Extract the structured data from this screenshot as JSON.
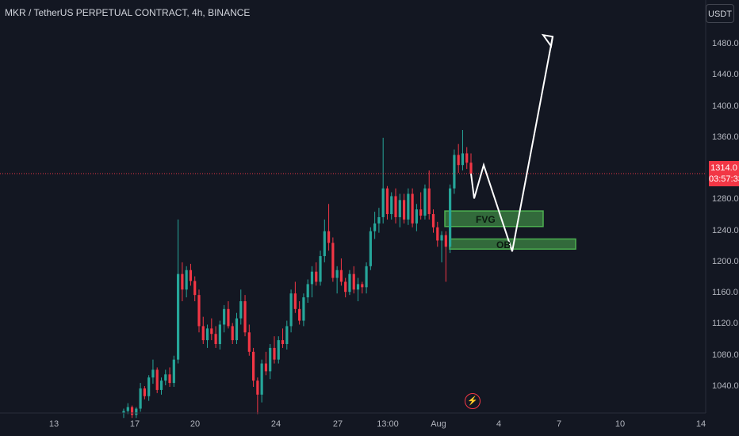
{
  "header": {
    "symbol_title": "MKR / TetherUS PERPETUAL CONTRACT, 4h, BINANCE",
    "currency_button": "USDT"
  },
  "current_price": {
    "value": "1314.0",
    "countdown": "03:57:33"
  },
  "zones": {
    "fvg_label": "FVG",
    "ob_label": "OB"
  },
  "event_icon": "lightning-icon",
  "colors": {
    "background": "#131722",
    "up": "#26a69a",
    "down": "#f23645",
    "zone_fill": "#4caf50",
    "current_price_line": "#f23645",
    "projection": "#ffffff"
  },
  "chart_data": {
    "type": "candlestick",
    "title": "MKR / TetherUS PERPETUAL CONTRACT, 4h, BINANCE",
    "y_axis": {
      "ticks": [
        "1480.0",
        "1440.0",
        "1400.0",
        "1360.0",
        "1280.0",
        "1240.0",
        "1200.0",
        "1160.0",
        "1120.0",
        "1080.0",
        "1040.0"
      ],
      "range": [
        1005,
        1505
      ]
    },
    "x_axis": {
      "ticks": [
        "13",
        "17",
        "20",
        "24",
        "27",
        "13:00",
        "Aug",
        "4",
        "7",
        "10",
        "14"
      ]
    },
    "current_price": 1314.0,
    "zones": [
      {
        "label": "FVG",
        "price_low": 1246,
        "price_high": 1266
      },
      {
        "label": "OB",
        "price_low": 1217,
        "price_high": 1230
      }
    ],
    "projection_path_prices": [
      1314,
      1282,
      1325,
      1214,
      1490
    ],
    "candles": [
      [
        1006,
        1012,
        1000,
        1009
      ],
      [
        1009,
        1019,
        1005,
        1014
      ],
      [
        1014,
        1016,
        1000,
        1004
      ],
      [
        1004,
        1014,
        1000,
        1012
      ],
      [
        1012,
        1045,
        1008,
        1038
      ],
      [
        1038,
        1041,
        1024,
        1028
      ],
      [
        1028,
        1055,
        1022,
        1052
      ],
      [
        1052,
        1075,
        1044,
        1062
      ],
      [
        1062,
        1065,
        1032,
        1036
      ],
      [
        1036,
        1052,
        1030,
        1048
      ],
      [
        1048,
        1062,
        1042,
        1056
      ],
      [
        1056,
        1065,
        1040,
        1045
      ],
      [
        1045,
        1080,
        1040,
        1075
      ],
      [
        1075,
        1255,
        1070,
        1185
      ],
      [
        1185,
        1200,
        1150,
        1165
      ],
      [
        1165,
        1195,
        1155,
        1190
      ],
      [
        1190,
        1198,
        1170,
        1176
      ],
      [
        1176,
        1182,
        1150,
        1158
      ],
      [
        1158,
        1165,
        1110,
        1118
      ],
      [
        1118,
        1130,
        1095,
        1100
      ],
      [
        1100,
        1120,
        1090,
        1115
      ],
      [
        1115,
        1128,
        1100,
        1108
      ],
      [
        1108,
        1118,
        1090,
        1095
      ],
      [
        1095,
        1125,
        1088,
        1120
      ],
      [
        1120,
        1145,
        1110,
        1140
      ],
      [
        1140,
        1150,
        1115,
        1118
      ],
      [
        1118,
        1122,
        1095,
        1100
      ],
      [
        1100,
        1135,
        1095,
        1128
      ],
      [
        1128,
        1165,
        1120,
        1150
      ],
      [
        1150,
        1158,
        1105,
        1110
      ],
      [
        1110,
        1120,
        1080,
        1085
      ],
      [
        1085,
        1090,
        1040,
        1048
      ],
      [
        1048,
        1052,
        1005,
        1030
      ],
      [
        1030,
        1075,
        1020,
        1070
      ],
      [
        1070,
        1085,
        1055,
        1060
      ],
      [
        1060,
        1095,
        1050,
        1090
      ],
      [
        1090,
        1105,
        1070,
        1075
      ],
      [
        1075,
        1105,
        1070,
        1100
      ],
      [
        1100,
        1115,
        1090,
        1095
      ],
      [
        1095,
        1125,
        1088,
        1118
      ],
      [
        1118,
        1165,
        1110,
        1160
      ],
      [
        1160,
        1175,
        1135,
        1140
      ],
      [
        1140,
        1150,
        1120,
        1125
      ],
      [
        1125,
        1160,
        1118,
        1155
      ],
      [
        1155,
        1178,
        1148,
        1172
      ],
      [
        1172,
        1195,
        1155,
        1188
      ],
      [
        1188,
        1200,
        1170,
        1175
      ],
      [
        1175,
        1215,
        1170,
        1208
      ],
      [
        1208,
        1255,
        1200,
        1240
      ],
      [
        1240,
        1275,
        1215,
        1225
      ],
      [
        1225,
        1232,
        1175,
        1180
      ],
      [
        1180,
        1195,
        1160,
        1190
      ],
      [
        1190,
        1205,
        1170,
        1175
      ],
      [
        1175,
        1180,
        1155,
        1162
      ],
      [
        1162,
        1190,
        1158,
        1185
      ],
      [
        1185,
        1195,
        1160,
        1165
      ],
      [
        1165,
        1180,
        1150,
        1172
      ],
      [
        1172,
        1175,
        1160,
        1168
      ],
      [
        1168,
        1200,
        1160,
        1195
      ],
      [
        1195,
        1245,
        1190,
        1240
      ],
      [
        1240,
        1265,
        1230,
        1250
      ],
      [
        1250,
        1270,
        1238,
        1258
      ],
      [
        1258,
        1360,
        1250,
        1295
      ],
      [
        1295,
        1298,
        1255,
        1262
      ],
      [
        1262,
        1290,
        1255,
        1285
      ],
      [
        1285,
        1295,
        1250,
        1258
      ],
      [
        1258,
        1288,
        1245,
        1280
      ],
      [
        1280,
        1288,
        1250,
        1255
      ],
      [
        1255,
        1295,
        1248,
        1288
      ],
      [
        1288,
        1295,
        1245,
        1250
      ],
      [
        1250,
        1275,
        1240,
        1268
      ],
      [
        1268,
        1290,
        1255,
        1260
      ],
      [
        1260,
        1300,
        1255,
        1295
      ],
      [
        1295,
        1318,
        1255,
        1262
      ],
      [
        1262,
        1268,
        1238,
        1245
      ],
      [
        1245,
        1252,
        1220,
        1228
      ],
      [
        1228,
        1240,
        1200,
        1235
      ],
      [
        1235,
        1240,
        1175,
        1220
      ],
      [
        1220,
        1300,
        1212,
        1295
      ],
      [
        1295,
        1345,
        1288,
        1338
      ],
      [
        1338,
        1352,
        1315,
        1325
      ],
      [
        1325,
        1370,
        1318,
        1340
      ],
      [
        1340,
        1348,
        1320,
        1328
      ],
      [
        1328,
        1340,
        1310,
        1314
      ]
    ]
  }
}
